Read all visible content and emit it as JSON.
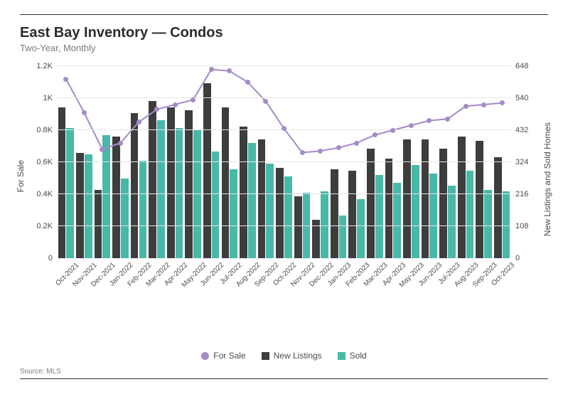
{
  "title": "East Bay Inventory — Condos",
  "subtitle": "Two-Year, Monthly",
  "source_label": "Source:",
  "source_value": "MLS",
  "y_left_label": "For Sale",
  "y_right_label": "New Listings and Sold Homes",
  "legend": {
    "for_sale": "For Sale",
    "new_listings": "New Listings",
    "sold": "Sold"
  },
  "chart": {
    "type": "bar+line",
    "colors": {
      "for_sale": "#a58bc9",
      "new_listings": "#3d3d3d",
      "sold": "#48b8a8",
      "grid": "#e6e6e6",
      "axis_text": "#4a4a4a",
      "background": "#ffffff"
    },
    "left_axis": {
      "min": 0,
      "max": 1200,
      "ticks": [
        "0",
        "0.2K",
        "0.4K",
        "0.6K",
        "0.8K",
        "1K",
        "1.2K"
      ],
      "tick_vals": [
        0,
        200,
        400,
        600,
        800,
        1000,
        1200
      ]
    },
    "right_axis": {
      "min": 0,
      "max": 648,
      "ticks": [
        "0",
        "108",
        "216",
        "324",
        "432",
        "540",
        "648"
      ],
      "tick_vals": [
        0,
        108,
        216,
        324,
        432,
        540,
        648
      ]
    },
    "categories": [
      "Oct-2021",
      "Nov-2021",
      "Dec-2021",
      "Jan-2022",
      "Feb-2022",
      "Mar-2022",
      "Apr-2022",
      "May-2022",
      "Jun-2022",
      "Jul-2022",
      "Aug-2022",
      "Sep-2022",
      "Oct-2022",
      "Nov-2022",
      "Dec-2022",
      "Jan-2023",
      "Feb-2023",
      "Mar-2023",
      "Apr-2023",
      "May-2023",
      "Jun-2023",
      "Jul-2023",
      "Aug-2023",
      "Sep-2023",
      "Oct-2023"
    ],
    "for_sale": [
      1120,
      910,
      680,
      720,
      850,
      930,
      960,
      990,
      1180,
      1170,
      1100,
      980,
      810,
      660,
      670,
      690,
      720,
      770,
      800,
      830,
      860,
      870,
      950,
      960,
      970
    ],
    "new_listings": [
      510,
      355,
      230,
      410,
      490,
      530,
      510,
      500,
      590,
      510,
      445,
      400,
      305,
      210,
      130,
      300,
      295,
      370,
      335,
      400,
      400,
      370,
      410,
      395,
      340
    ],
    "sold": [
      440,
      350,
      415,
      270,
      330,
      465,
      440,
      435,
      360,
      300,
      390,
      320,
      275,
      220,
      225,
      145,
      200,
      280,
      255,
      315,
      285,
      245,
      295,
      230,
      225
    ],
    "marker_radius": 3.5,
    "line_width": 2,
    "tick_fontsize": 11,
    "xlabel_fontsize": 10,
    "title_fontsize": 20
  }
}
